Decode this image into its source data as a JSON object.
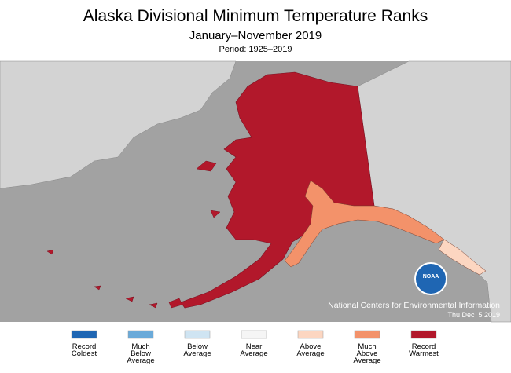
{
  "title": "Alaska Divisional Minimum Temperature Ranks",
  "subtitle": "January–November 2019",
  "period": "Period: 1925–2019",
  "legend": [
    {
      "label": [
        "Record",
        "Coldest"
      ],
      "color": "#1f66b3"
    },
    {
      "label": [
        "Much",
        "Below",
        "Average"
      ],
      "color": "#6aaad9"
    },
    {
      "label": [
        "Below",
        "Average"
      ],
      "color": "#cfe4f2"
    },
    {
      "label": [
        "Near",
        "Average"
      ],
      "color": "#f5f5f5"
    },
    {
      "label": [
        "Above",
        "Average"
      ],
      "color": "#fcd6c1"
    },
    {
      "label": [
        "Much",
        "Above",
        "Average"
      ],
      "color": "#f3926a"
    },
    {
      "label": [
        "Record",
        "Warmest"
      ],
      "color": "#b2182b"
    }
  ],
  "credit": {
    "logo": "NOAA",
    "org": "National Centers for Environmental Information",
    "date": "Thu Dec  5 2019"
  }
}
